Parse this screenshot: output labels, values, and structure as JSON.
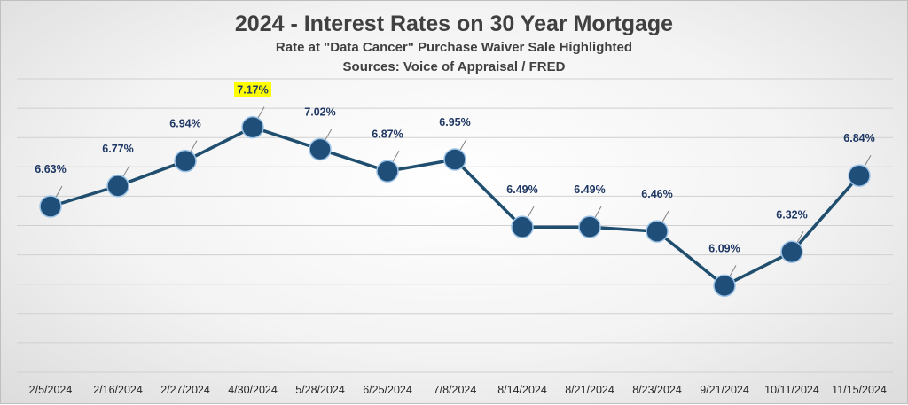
{
  "chart_data": {
    "type": "line",
    "title": "2024 - Interest Rates on 30 Year Mortgage",
    "subtitle": "Rate at \"Data Cancer\" Purchase Waiver Sale Highlighted",
    "sources": "Sources: Voice of Appraisal / FRED",
    "xlabel": "",
    "ylabel": "",
    "ylim": [
      5.5,
      7.5
    ],
    "grid": true,
    "highlight_index": 3,
    "series": [
      {
        "name": "30 Year Mortgage Rate",
        "values": [
          6.63,
          6.77,
          6.94,
          7.17,
          7.02,
          6.87,
          6.95,
          6.49,
          6.49,
          6.46,
          6.09,
          6.32,
          6.84
        ]
      }
    ],
    "categories": [
      "2/5/2024",
      "2/16/2024",
      "2/27/2024",
      "4/30/2024",
      "5/28/2024",
      "6/25/2024",
      "7/8/2024",
      "8/14/2024",
      "8/21/2024",
      "8/23/2024",
      "9/21/2024",
      "10/11/2024",
      "11/15/2024"
    ],
    "data_labels": [
      "6.63%",
      "6.77%",
      "6.94%",
      "7.17%",
      "7.02%",
      "6.87%",
      "6.95%",
      "6.49%",
      "6.49%",
      "6.46%",
      "6.09%",
      "6.32%",
      "6.84%"
    ]
  },
  "colors": {
    "line": "#1f4e6e",
    "marker": "#1f4e79",
    "marker_stroke": "#9dc3e6",
    "grid": "#d0d0d0",
    "highlight": "#ffff00",
    "label": "#203864",
    "leader": "#7f7f7f"
  }
}
